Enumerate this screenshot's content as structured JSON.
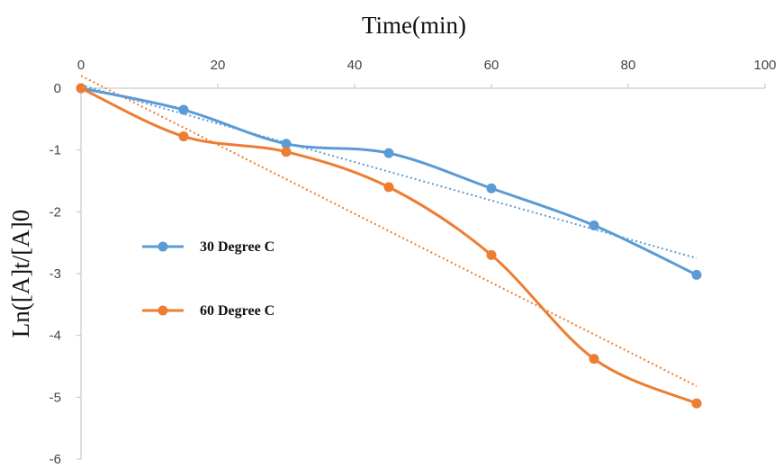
{
  "chart_data": {
    "type": "line",
    "title": "",
    "xlabel": "Time(min)",
    "ylabel": "Ln([A]t/[A]0",
    "x_ticks": [
      0,
      20,
      40,
      60,
      80,
      100
    ],
    "y_ticks": [
      0,
      -1,
      -2,
      -3,
      -4,
      -5,
      -6
    ],
    "xlim": [
      0,
      100
    ],
    "ylim": [
      -6,
      0
    ],
    "x_axis_position": "top",
    "grid": false,
    "legend_position": "left-center",
    "x": [
      0,
      15,
      30,
      45,
      60,
      75,
      90
    ],
    "series": [
      {
        "name": "30 Degree C",
        "color": "#5b9bd5",
        "values": [
          0,
          -0.35,
          -0.9,
          -1.05,
          -1.62,
          -2.22,
          -3.02
        ],
        "trendline": {
          "type": "linear",
          "style": "dotted",
          "x": [
            0,
            90
          ],
          "y": [
            0.05,
            -2.75
          ]
        }
      },
      {
        "name": "60 Degree C",
        "color": "#ed7d31",
        "values": [
          0,
          -0.78,
          -1.03,
          -1.6,
          -2.7,
          -4.38,
          -5.1
        ],
        "trendline": {
          "type": "linear",
          "style": "dotted",
          "x": [
            0,
            90
          ],
          "y": [
            0.2,
            -4.82
          ]
        }
      }
    ]
  }
}
